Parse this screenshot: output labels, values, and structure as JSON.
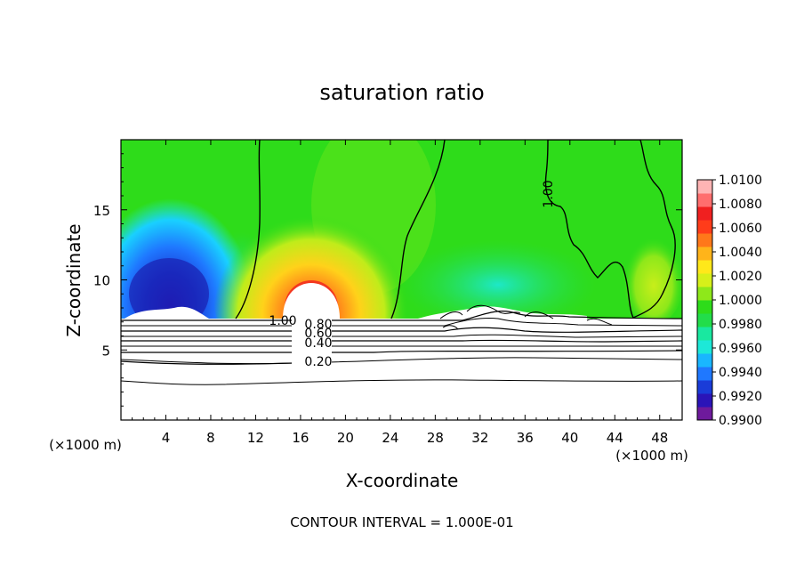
{
  "chart_data": {
    "type": "heatmap",
    "title": "saturation ratio",
    "xlabel": "X-coordinate",
    "ylabel": "Z-coordinate",
    "x_unit": "(×1000 m)",
    "x_unit_right": "(×1000 m)",
    "xlim": [
      0,
      50
    ],
    "ylim": [
      0,
      20
    ],
    "x_ticks": [
      4,
      8,
      12,
      16,
      20,
      24,
      28,
      32,
      36,
      40,
      44,
      48
    ],
    "y_ticks": [
      5,
      10,
      15
    ],
    "footer": "CONTOUR INTERVAL = 1.000E-01",
    "colorbar": {
      "range": [
        0.99,
        1.01
      ],
      "tick_labels": [
        "0.9900",
        "0.9920",
        "0.9940",
        "0.9960",
        "0.9980",
        "1.0000",
        "1.0020",
        "1.0040",
        "1.0060",
        "1.0080",
        "1.0100"
      ],
      "colors": [
        "#6e1a9c",
        "#2a14b8",
        "#1a3cd8",
        "#1f78ff",
        "#19b6ff",
        "#1de8d8",
        "#19e8a0",
        "#22dd4a",
        "#2edc1a",
        "#8ee81a",
        "#d6f01a",
        "#ffe81a",
        "#ffb41a",
        "#ff781a",
        "#ff3c1a",
        "#f02020",
        "#ff6e6e",
        "#ffb4b4"
      ]
    },
    "contour_labels": [
      {
        "text": "1.00",
        "x": 38.1,
        "y": 17.3
      },
      {
        "text": "1.00",
        "x": 14.4,
        "y": 7.0
      },
      {
        "text": "0.80",
        "x": 17.2,
        "y": 6.8
      },
      {
        "text": "0.60",
        "x": 17.2,
        "y": 6.1
      },
      {
        "text": "0.40",
        "x": 17.2,
        "y": 5.3
      },
      {
        "text": "0.20",
        "x": 17.2,
        "y": 4.2
      }
    ],
    "cloud_base_height": 7.3,
    "cloud_boundary_x": [
      10,
      20.5,
      25.5,
      36,
      43.5,
      44.5,
      48
    ]
  }
}
